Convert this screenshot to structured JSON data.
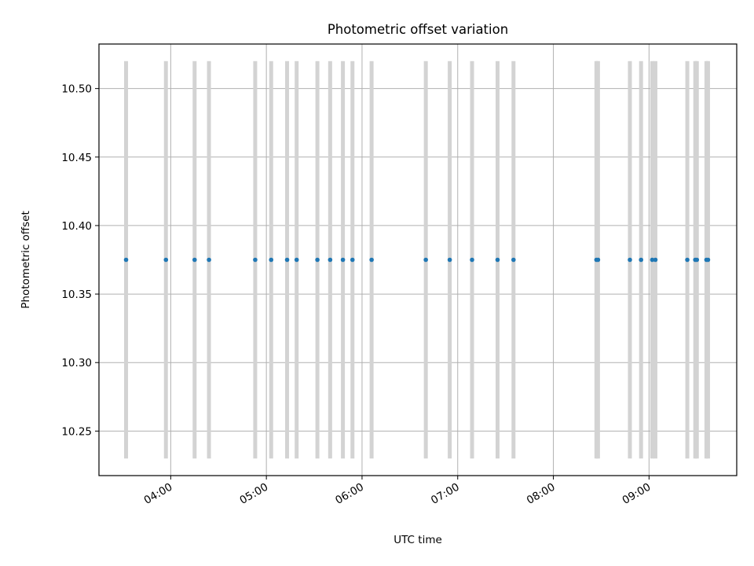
{
  "chart_data": {
    "type": "scatter",
    "title": "Photometric offset variation",
    "xlabel": "UTC time",
    "ylabel": "Photometric offset",
    "x_axis_type": "time",
    "xlim": [
      "03:15",
      "09:55"
    ],
    "ylim": [
      10.2175,
      10.5325
    ],
    "x_ticks": [
      "04:00",
      "05:00",
      "06:00",
      "07:00",
      "08:00",
      "09:00"
    ],
    "y_ticks": [
      10.25,
      10.3,
      10.35,
      10.4,
      10.45,
      10.5
    ],
    "y_tick_labels": [
      "10.25",
      "10.30",
      "10.35",
      "10.40",
      "10.45",
      "10.50"
    ],
    "grid": true,
    "legend": false,
    "error_bar": {
      "lower": 10.23,
      "upper": 10.52
    },
    "series": [
      {
        "color": "#1f77b4",
        "error_color": "#d3d3d3",
        "points": [
          {
            "x": "03:32",
            "y": 10.375
          },
          {
            "x": "03:57",
            "y": 10.375
          },
          {
            "x": "04:15",
            "y": 10.375
          },
          {
            "x": "04:24",
            "y": 10.375
          },
          {
            "x": "04:53",
            "y": 10.375
          },
          {
            "x": "05:03",
            "y": 10.375
          },
          {
            "x": "05:13",
            "y": 10.375
          },
          {
            "x": "05:19",
            "y": 10.375
          },
          {
            "x": "05:32",
            "y": 10.375
          },
          {
            "x": "05:40",
            "y": 10.375
          },
          {
            "x": "05:48",
            "y": 10.375
          },
          {
            "x": "05:54",
            "y": 10.375
          },
          {
            "x": "06:06",
            "y": 10.375
          },
          {
            "x": "06:40",
            "y": 10.375
          },
          {
            "x": "06:55",
            "y": 10.375
          },
          {
            "x": "07:09",
            "y": 10.375
          },
          {
            "x": "07:25",
            "y": 10.375
          },
          {
            "x": "07:35",
            "y": 10.375
          },
          {
            "x": "08:27",
            "y": 10.375
          },
          {
            "x": "08:28",
            "y": 10.375
          },
          {
            "x": "08:48",
            "y": 10.375
          },
          {
            "x": "08:55",
            "y": 10.375
          },
          {
            "x": "09:02",
            "y": 10.375
          },
          {
            "x": "09:04",
            "y": 10.375
          },
          {
            "x": "09:24",
            "y": 10.375
          },
          {
            "x": "09:29",
            "y": 10.375
          },
          {
            "x": "09:30",
            "y": 10.375
          },
          {
            "x": "09:36",
            "y": 10.375
          },
          {
            "x": "09:37",
            "y": 10.375
          }
        ]
      }
    ]
  }
}
